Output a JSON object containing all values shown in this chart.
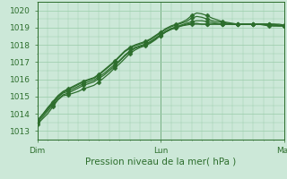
{
  "bg_color": "#cce8d8",
  "grid_color": "#99ccaa",
  "line_color": "#2d6e2d",
  "marker_color": "#2d6e2d",
  "title": "Pression niveau de la mer( hPa )",
  "yticks": [
    1013,
    1014,
    1015,
    1016,
    1017,
    1018,
    1019,
    1020
  ],
  "ylim": [
    1012.5,
    1020.5
  ],
  "xlim": [
    0,
    96
  ],
  "xtick_positions": [
    0,
    48,
    96
  ],
  "xtick_labels": [
    "Dim",
    "Lun",
    "Mar"
  ],
  "vlines": [
    0,
    48,
    96
  ],
  "series": [
    [
      1013.4,
      1013.7,
      1014.0,
      1014.4,
      1014.8,
      1015.05,
      1015.1,
      1015.2,
      1015.3,
      1015.45,
      1015.55,
      1015.65,
      1015.85,
      1016.1,
      1016.35,
      1016.65,
      1016.9,
      1017.2,
      1017.5,
      1017.7,
      1017.85,
      1017.95,
      1018.1,
      1018.3,
      1018.55,
      1018.75,
      1018.9,
      1019.0,
      1019.1,
      1019.15,
      1019.2,
      1019.2,
      1019.2,
      1019.2,
      1019.2,
      1019.2,
      1019.2,
      1019.2,
      1019.2,
      1019.2,
      1019.2,
      1019.2,
      1019.2,
      1019.2,
      1019.2,
      1019.2,
      1019.2,
      1019.2,
      1019.15
    ],
    [
      1013.5,
      1013.8,
      1014.15,
      1014.5,
      1014.85,
      1015.1,
      1015.2,
      1015.35,
      1015.5,
      1015.65,
      1015.75,
      1015.85,
      1016.05,
      1016.25,
      1016.5,
      1016.75,
      1017.05,
      1017.35,
      1017.6,
      1017.8,
      1017.9,
      1018.0,
      1018.15,
      1018.35,
      1018.55,
      1018.75,
      1018.9,
      1019.0,
      1019.1,
      1019.2,
      1019.25,
      1019.25,
      1019.2,
      1019.2,
      1019.2,
      1019.2,
      1019.2,
      1019.2,
      1019.2,
      1019.2,
      1019.2,
      1019.2,
      1019.2,
      1019.2,
      1019.2,
      1019.2,
      1019.2,
      1019.15,
      1019.1
    ],
    [
      1013.6,
      1013.9,
      1014.25,
      1014.6,
      1014.95,
      1015.2,
      1015.3,
      1015.45,
      1015.6,
      1015.75,
      1015.85,
      1015.95,
      1016.15,
      1016.35,
      1016.6,
      1016.85,
      1017.1,
      1017.4,
      1017.65,
      1017.85,
      1017.95,
      1018.05,
      1018.2,
      1018.4,
      1018.6,
      1018.8,
      1018.95,
      1019.05,
      1019.15,
      1019.25,
      1019.35,
      1019.4,
      1019.4,
      1019.35,
      1019.3,
      1019.25,
      1019.2,
      1019.2,
      1019.2,
      1019.2,
      1019.2,
      1019.2,
      1019.2,
      1019.2,
      1019.2,
      1019.2,
      1019.15,
      1019.1,
      1019.1
    ],
    [
      1013.6,
      1013.95,
      1014.3,
      1014.65,
      1015.0,
      1015.25,
      1015.4,
      1015.55,
      1015.7,
      1015.85,
      1015.95,
      1016.05,
      1016.25,
      1016.5,
      1016.75,
      1017.0,
      1017.3,
      1017.6,
      1017.8,
      1017.95,
      1018.05,
      1018.15,
      1018.3,
      1018.5,
      1018.7,
      1018.9,
      1019.05,
      1019.15,
      1019.25,
      1019.35,
      1019.55,
      1019.65,
      1019.6,
      1019.5,
      1019.4,
      1019.35,
      1019.3,
      1019.25,
      1019.2,
      1019.2,
      1019.2,
      1019.2,
      1019.2,
      1019.2,
      1019.2,
      1019.15,
      1019.1,
      1019.1,
      1019.1
    ],
    [
      1013.6,
      1013.95,
      1014.35,
      1014.7,
      1015.05,
      1015.3,
      1015.45,
      1015.6,
      1015.75,
      1015.9,
      1016.0,
      1016.1,
      1016.3,
      1016.55,
      1016.8,
      1017.05,
      1017.35,
      1017.65,
      1017.85,
      1018.0,
      1018.1,
      1018.2,
      1018.35,
      1018.55,
      1018.75,
      1018.95,
      1019.1,
      1019.2,
      1019.3,
      1019.45,
      1019.7,
      1019.85,
      1019.8,
      1019.7,
      1019.55,
      1019.45,
      1019.35,
      1019.3,
      1019.25,
      1019.2,
      1019.2,
      1019.2,
      1019.2,
      1019.2,
      1019.15,
      1019.1,
      1019.1,
      1019.1,
      1019.1
    ]
  ],
  "marker_step": 3,
  "linewidth": 0.9,
  "markersize": 2.5,
  "tick_fontsize": 6.5,
  "label_fontsize": 7.5
}
